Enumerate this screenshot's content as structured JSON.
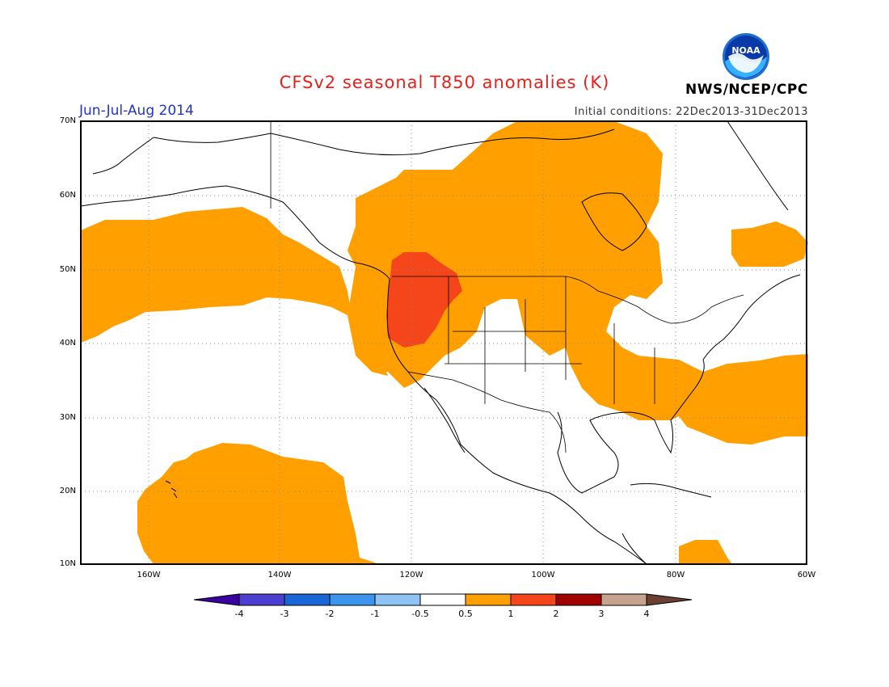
{
  "title": "CFSv2 seasonal T850 anomalies (K)",
  "season": "Jun-Jul-Aug 2014",
  "initial_conditions": "Initial conditions: 22Dec2013-31Dec2013",
  "agency": "NWS/NCEP/CPC",
  "logo_text": "NOAA",
  "colors": {
    "title": "#e8201c",
    "season": "#2233cc",
    "anom_0_5_1": "#ffa000",
    "anom_1_2": "#f5451b",
    "land_outline": "#000000"
  },
  "lat_labels": [
    "70N",
    "60N",
    "50N",
    "40N",
    "30N",
    "20N",
    "10N"
  ],
  "lon_labels": [
    "160W",
    "140W",
    "120W",
    "100W",
    "80W",
    "60W"
  ],
  "colorbar": {
    "labels": [
      "-4",
      "-3",
      "-2",
      "-1",
      "-0.5",
      "0.5",
      "1",
      "2",
      "3",
      "4"
    ],
    "colors": [
      "#3a00a0",
      "#4a3fd0",
      "#1a66d6",
      "#3d94ec",
      "#8ec3f5",
      "#ffffff",
      "#ffa000",
      "#f5451b",
      "#a00000",
      "#c7a28e",
      "#6b4032"
    ]
  },
  "chart_data": {
    "type": "heatmap",
    "title": "CFSv2 seasonal T850 anomalies (K)",
    "subtitle": "Jun-Jul-Aug 2014",
    "units": "K",
    "domain": {
      "lon": [
        -172,
        -60
      ],
      "lat": [
        10,
        70
      ]
    },
    "levels": [
      -4,
      -3,
      -2,
      -1,
      -0.5,
      0.5,
      1,
      2,
      3,
      4
    ],
    "regions": [
      {
        "range": "0.5-1",
        "area": "Canada / western US / Great Plains",
        "color": "#ffa000"
      },
      {
        "range": "0.5-1",
        "area": "North Pacific (Gulf of Alaska band)",
        "color": "#ffa000"
      },
      {
        "range": "0.5-1",
        "area": "Southeastern US and western Atlantic",
        "color": "#ffa000"
      },
      {
        "range": "0.5-1",
        "area": "Subtropical Pacific near Hawaii",
        "color": "#ffa000"
      },
      {
        "range": "0.5-1",
        "area": "Labrador / Newfoundland",
        "color": "#ffa000"
      },
      {
        "range": "0.5-1",
        "area": "Caribbean near Venezuela",
        "color": "#ffa000"
      },
      {
        "range": "1-2",
        "area": "Pacific Northwest (Oregon, Idaho, Washington)",
        "color": "#f5451b"
      }
    ]
  }
}
